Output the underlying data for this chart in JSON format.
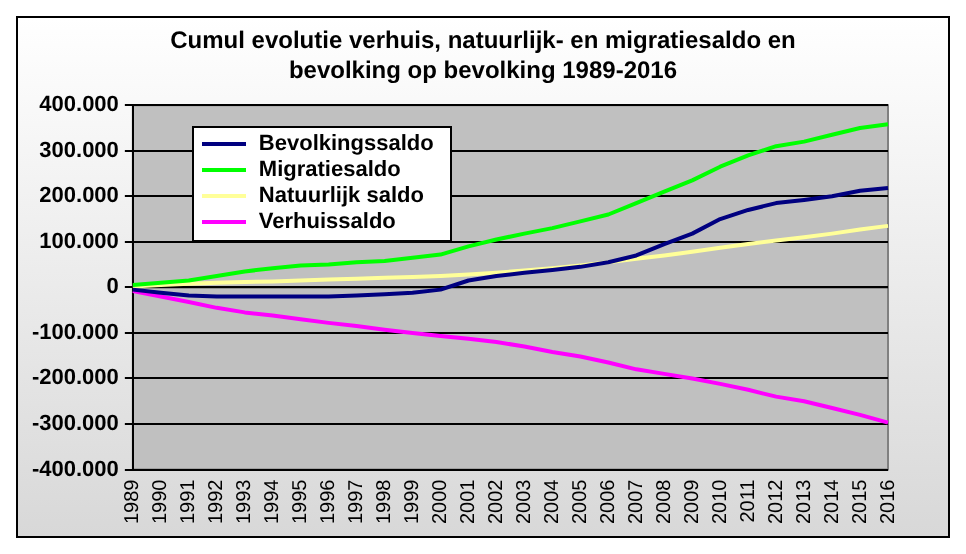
{
  "chart_data": {
    "type": "line",
    "title": "Cumul evolutie verhuis, natuurlijk- en migratiesaldo en bevolking op bevolking 1989-2016",
    "categories": [
      "1989",
      "1990",
      "1991",
      "1992",
      "1993",
      "1994",
      "1995",
      "1996",
      "1997",
      "1998",
      "1999",
      "2000",
      "2001",
      "2002",
      "2003",
      "2004",
      "2005",
      "2006",
      "2007",
      "2008",
      "2009",
      "2010",
      "2011",
      "2012",
      "2013",
      "2014",
      "2015",
      "2016"
    ],
    "series": [
      {
        "name": "Bevolkingssaldo",
        "color": "#000080",
        "values": [
          -5000,
          -12000,
          -18000,
          -20000,
          -20000,
          -20000,
          -20000,
          -20000,
          -18000,
          -15000,
          -12000,
          -5000,
          15000,
          25000,
          32000,
          38000,
          45000,
          55000,
          70000,
          95000,
          118000,
          150000,
          170000,
          185000,
          192000,
          200000,
          212000,
          218000
        ]
      },
      {
        "name": "Migratiesaldo",
        "color": "#00ff00",
        "values": [
          5000,
          10000,
          15000,
          25000,
          35000,
          42000,
          48000,
          50000,
          55000,
          58000,
          65000,
          72000,
          90000,
          105000,
          118000,
          130000,
          145000,
          160000,
          185000,
          210000,
          235000,
          265000,
          290000,
          310000,
          320000,
          335000,
          350000,
          358000
        ]
      },
      {
        "name": "Natuurlijk saldo",
        "color": "#ffff99",
        "values": [
          2000,
          5000,
          8000,
          10000,
          12000,
          13000,
          15000,
          17000,
          19000,
          21000,
          23000,
          25000,
          28000,
          32000,
          37000,
          42000,
          48000,
          55000,
          63000,
          70000,
          78000,
          87000,
          95000,
          103000,
          110000,
          118000,
          127000,
          135000
        ]
      },
      {
        "name": "Verhuissaldo",
        "color": "#ff00ff",
        "values": [
          -8000,
          -20000,
          -32000,
          -45000,
          -55000,
          -62000,
          -70000,
          -78000,
          -85000,
          -93000,
          -100000,
          -107000,
          -113000,
          -120000,
          -130000,
          -142000,
          -152000,
          -165000,
          -180000,
          -190000,
          -200000,
          -212000,
          -225000,
          -240000,
          -250000,
          -265000,
          -280000,
          -297000
        ]
      }
    ],
    "ylim": [
      -400000,
      400000
    ],
    "yticks": [
      {
        "value": -400000,
        "label": "-400.000"
      },
      {
        "value": -300000,
        "label": "-300.000"
      },
      {
        "value": -200000,
        "label": "-200.000"
      },
      {
        "value": -100000,
        "label": "-100.000"
      },
      0,
      {
        "value": 100000,
        "label": "100.000"
      },
      {
        "value": 200000,
        "label": "200.000"
      },
      {
        "value": 300000,
        "label": "300.000"
      },
      {
        "value": 400000,
        "label": "400.000"
      }
    ],
    "grid": "y",
    "legend": "top left",
    "marker": "none",
    "line_style": "solid"
  }
}
